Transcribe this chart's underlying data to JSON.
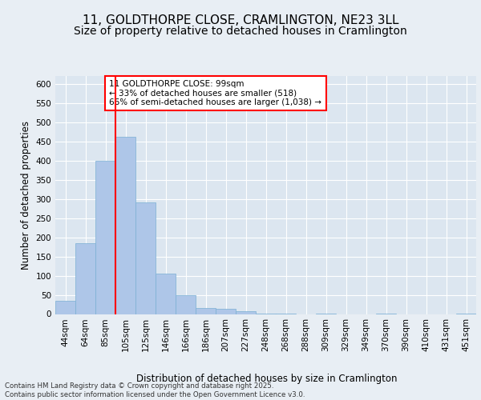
{
  "title_line1": "11, GOLDTHORPE CLOSE, CRAMLINGTON, NE23 3LL",
  "title_line2": "Size of property relative to detached houses in Cramlington",
  "xlabel": "Distribution of detached houses by size in Cramlington",
  "ylabel": "Number of detached properties",
  "footnote": "Contains HM Land Registry data © Crown copyright and database right 2025.\nContains public sector information licensed under the Open Government Licence v3.0.",
  "categories": [
    "44sqm",
    "64sqm",
    "85sqm",
    "105sqm",
    "125sqm",
    "146sqm",
    "166sqm",
    "186sqm",
    "207sqm",
    "227sqm",
    "248sqm",
    "268sqm",
    "288sqm",
    "309sqm",
    "329sqm",
    "349sqm",
    "370sqm",
    "390sqm",
    "410sqm",
    "431sqm",
    "451sqm"
  ],
  "values": [
    35,
    185,
    400,
    462,
    290,
    105,
    48,
    15,
    13,
    7,
    2,
    1,
    0,
    1,
    0,
    0,
    1,
    0,
    0,
    0,
    1
  ],
  "bar_color": "#aec6e8",
  "bar_edge_color": "#7aafd4",
  "vline_x": 2.5,
  "vline_color": "red",
  "annotation_text": "11 GOLDTHORPE CLOSE: 99sqm\n← 33% of detached houses are smaller (518)\n66% of semi-detached houses are larger (1,038) →",
  "annotation_box_color": "white",
  "annotation_box_edge": "red",
  "ylim": [
    0,
    620
  ],
  "yticks": [
    0,
    50,
    100,
    150,
    200,
    250,
    300,
    350,
    400,
    450,
    500,
    550,
    600
  ],
  "bg_color": "#e8eef4",
  "plot_bg_color": "#dce6f0",
  "grid_color": "white",
  "title_fontsize": 11,
  "subtitle_fontsize": 10,
  "axis_label_fontsize": 8.5,
  "tick_fontsize": 7.5,
  "annotation_fontsize": 7.5
}
